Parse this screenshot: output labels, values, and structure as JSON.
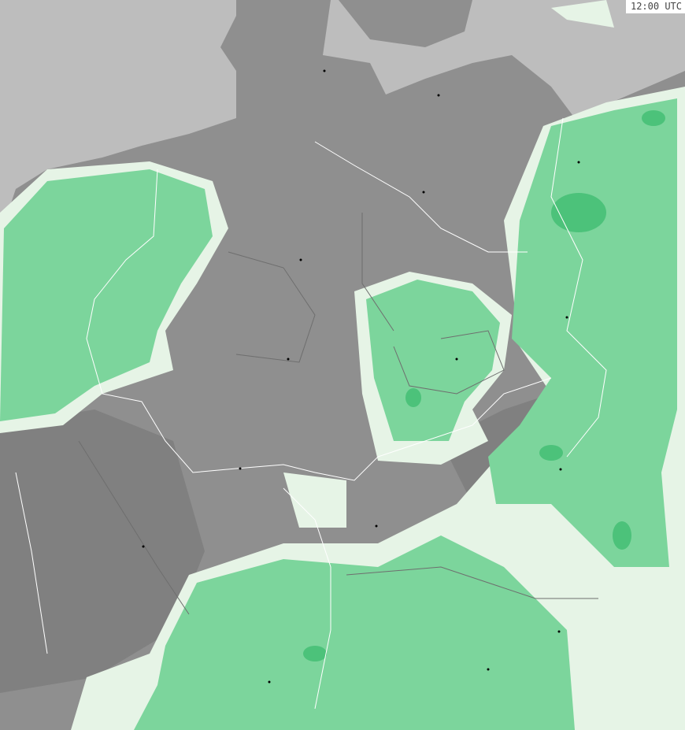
{
  "map": {
    "time_label": "12:00 UTC",
    "layer": "precipitation",
    "colors": {
      "sea": "#bdbdbd",
      "land": "#8f8f8f",
      "land_dark": "#7f7f7f",
      "precip_light": "#e6f4e6",
      "precip": "#7cd59c",
      "precip_heavy": "#4cc27a",
      "border_national": "#ffffff",
      "border_regional": "#6e6e6e"
    }
  }
}
